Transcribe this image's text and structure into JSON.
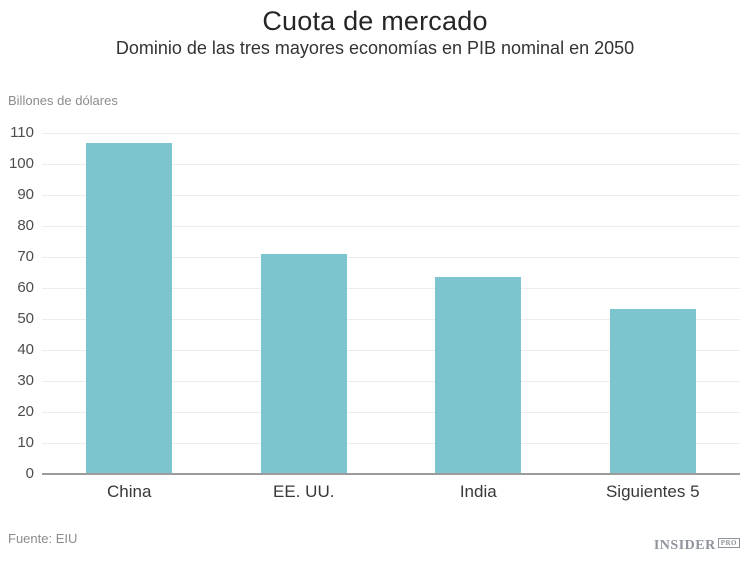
{
  "header": {
    "title": "Cuota de mercado",
    "subtitle": "Dominio de las tres mayores economías en PIB nominal en 2050"
  },
  "chart_data": {
    "type": "bar",
    "title": "Cuota de mercado",
    "subtitle": "Dominio de las tres mayores economías en PIB nominal en 2050",
    "unit_label": "Billones de dólares",
    "categories": [
      "China",
      "EE. UU.",
      "India",
      "Siguientes 5"
    ],
    "values": [
      106.7,
      70.9,
      63.5,
      53.3
    ],
    "xlabel": "",
    "ylabel": "Billones de dólares",
    "ylim": [
      0,
      110
    ],
    "ytick_step": 10,
    "grid": true,
    "legend": false,
    "bar_color": "#7cc5ce"
  },
  "footer": {
    "source": "Fuente: EIU",
    "logo_text": "INSIDER",
    "logo_badge": "PRO"
  },
  "colors": {
    "bar": "#7cc5ce",
    "gridline": "#ececec",
    "axis_line": "#9b9b9b",
    "title_text": "#262626",
    "muted_text": "#8c8c8c"
  }
}
